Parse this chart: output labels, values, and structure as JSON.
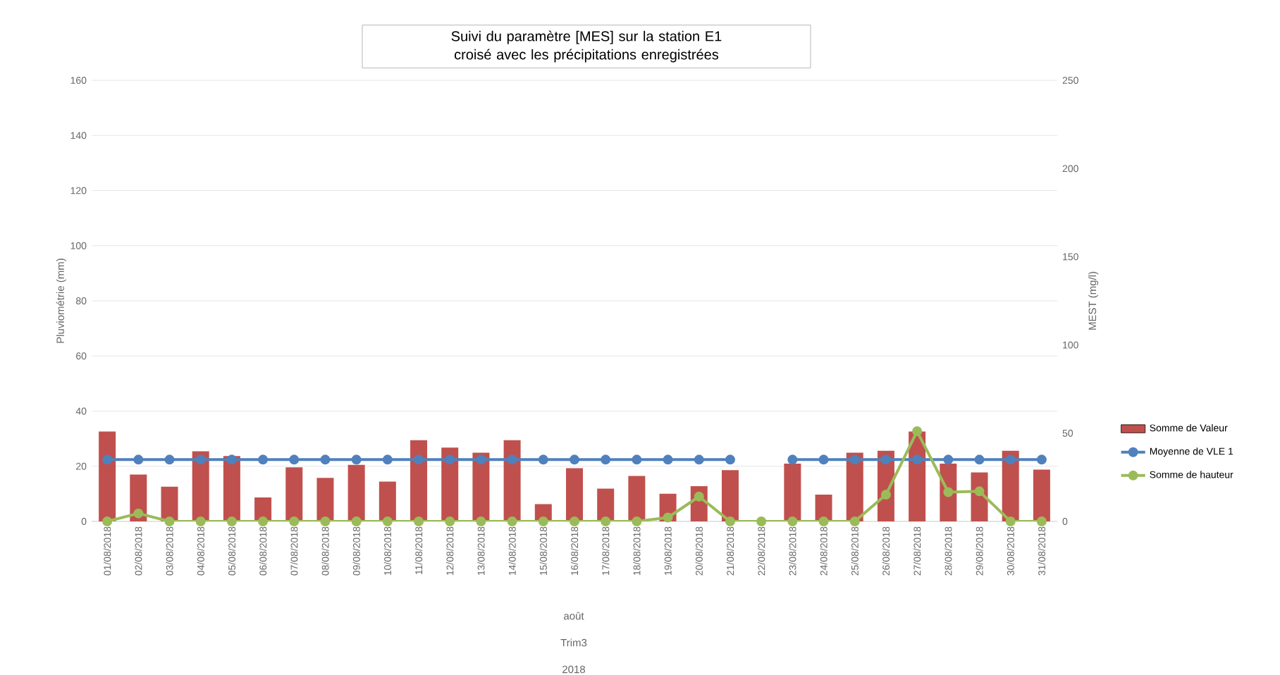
{
  "chart_data": {
    "type": "bar",
    "title": "Suivi du paramètre [MES] sur la station E1 croisé avec les précipitations enregistrées",
    "ylabel": "Pluviométrie (mm)",
    "y2label": "MEST (mg/l)",
    "categories": [
      "01/08/2018",
      "02/08/2018",
      "03/08/2018",
      "04/08/2018",
      "05/08/2018",
      "06/08/2018",
      "07/08/2018",
      "08/08/2018",
      "09/08/2018",
      "10/08/2018",
      "11/08/2018",
      "12/08/2018",
      "13/08/2018",
      "14/08/2018",
      "15/08/2018",
      "16/08/2018",
      "17/08/2018",
      "18/08/2018",
      "19/08/2018",
      "20/08/2018",
      "21/08/2018",
      "22/08/2018",
      "23/08/2018",
      "24/08/2018",
      "25/08/2018",
      "26/08/2018",
      "27/08/2018",
      "28/08/2018",
      "29/08/2018",
      "30/08/2018",
      "31/08/2018"
    ],
    "series": [
      {
        "name": "Somme de Valeur",
        "axis": "y2",
        "color": "#c0504d",
        "values": [
          51,
          26.6,
          19.7,
          39.7,
          37,
          13.6,
          30.6,
          24.7,
          32,
          22.6,
          46,
          41.8,
          38.9,
          46,
          9.8,
          30.1,
          18.6,
          25.8,
          15.7,
          20,
          29,
          null,
          32.7,
          15.2,
          38.9,
          40,
          51,
          32.7,
          27.7,
          40,
          29.3
        ]
      },
      {
        "name": "Moyenne de VLE 1",
        "type": "line",
        "axis": "y2",
        "color": "#4f81bd",
        "marker": "circle",
        "values": [
          35,
          35,
          35,
          35,
          35,
          35,
          35,
          35,
          35,
          35,
          35,
          35,
          35,
          35,
          35,
          35,
          35,
          35,
          35,
          35,
          35,
          null,
          35,
          35,
          35,
          35,
          35,
          35,
          35,
          35,
          35
        ]
      },
      {
        "name": "Somme de hauteur",
        "type": "line",
        "axis": "y",
        "color": "#9bbb59",
        "marker": "circle",
        "values": [
          0,
          2.9,
          0,
          0,
          0,
          0,
          0,
          0,
          0,
          0,
          0,
          0,
          0,
          0,
          0,
          0,
          0,
          0,
          1.4,
          9,
          0,
          0,
          0,
          0,
          0,
          9.7,
          32.7,
          10.6,
          10.9,
          0,
          0
        ]
      }
    ],
    "ylim": [
      0,
      160
    ],
    "yticks": [
      0,
      20,
      40,
      60,
      80,
      100,
      120,
      140,
      160
    ],
    "y2lim": [
      0,
      250
    ],
    "y2ticks": [
      0,
      50,
      100,
      150,
      200,
      250
    ],
    "grid": "y",
    "legend": "right",
    "annotations": [
      "août",
      "Trim3",
      "2018"
    ]
  }
}
